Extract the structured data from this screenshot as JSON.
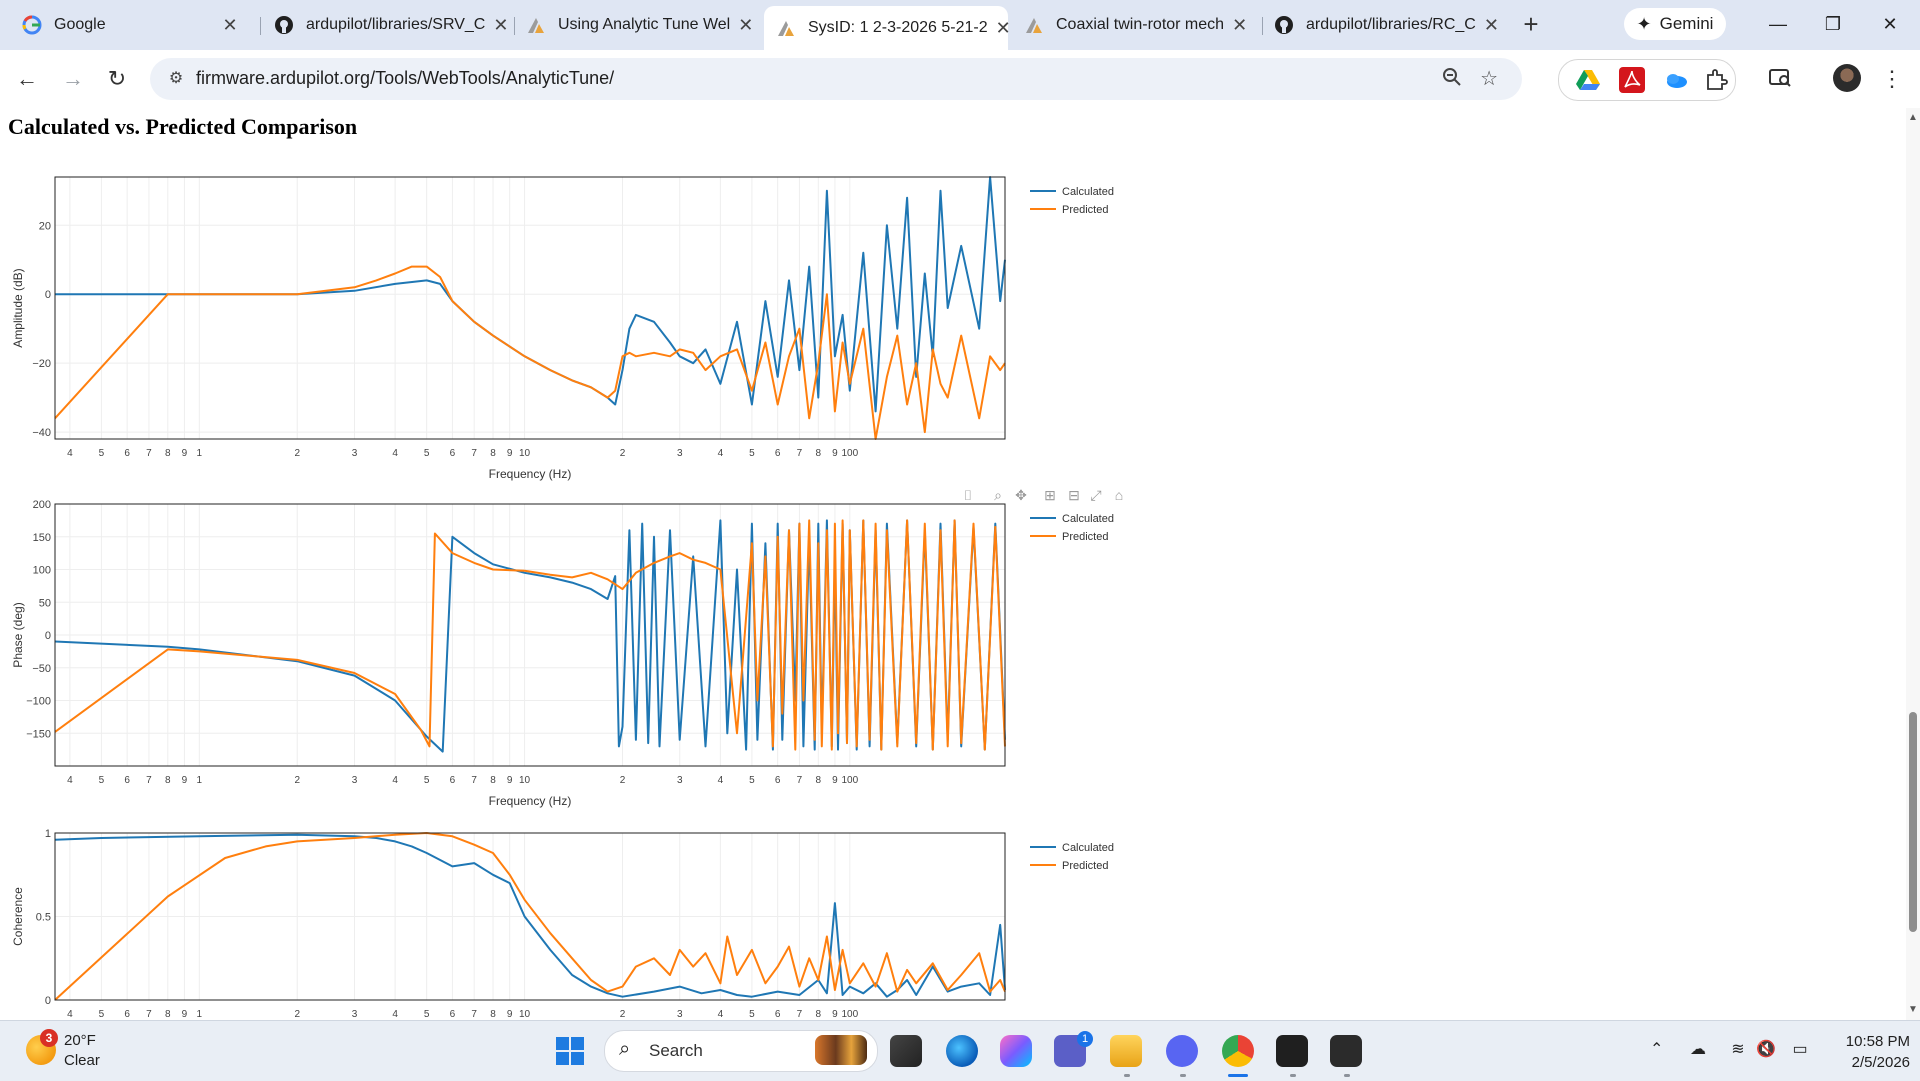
{
  "browser": {
    "tabs": [
      {
        "title": "Google",
        "icon": "google-icon"
      },
      {
        "title": "ardupilot/libraries/SRV_C",
        "icon": "github-icon"
      },
      {
        "title": "Using Analytic Tune Wel",
        "icon": "ardupilot-icon"
      },
      {
        "title": "SysID: 1 2-3-2026 5-21-2",
        "icon": "ardupilot-icon",
        "active": true
      },
      {
        "title": "Coaxial twin-rotor mech",
        "icon": "ardupilot-icon"
      },
      {
        "title": "ardupilot/libraries/RC_C",
        "icon": "github-icon"
      }
    ],
    "gemini_label": "Gemini",
    "url": "firmware.ardupilot.org/Tools/WebTools/AnalyticTune/"
  },
  "page": {
    "title": "Calculated vs. Predicted Comparison"
  },
  "chart_data": [
    {
      "type": "line",
      "title": "",
      "xlabel": "Frequency (Hz)",
      "ylabel": "Amplitude (dB)",
      "xscale": "log",
      "xlim": [
        0.36,
        300
      ],
      "ylim": [
        -42,
        34
      ],
      "x_ticks": [
        {
          "v": 0.4,
          "t": "4"
        },
        {
          "v": 0.5,
          "t": "5"
        },
        {
          "v": 0.6,
          "t": "6"
        },
        {
          "v": 0.7,
          "t": "7"
        },
        {
          "v": 0.8,
          "t": "8"
        },
        {
          "v": 0.9,
          "t": "9"
        },
        {
          "v": 1,
          "t": "1"
        },
        {
          "v": 2,
          "t": "2"
        },
        {
          "v": 3,
          "t": "3"
        },
        {
          "v": 4,
          "t": "4"
        },
        {
          "v": 5,
          "t": "5"
        },
        {
          "v": 6,
          "t": "6"
        },
        {
          "v": 7,
          "t": "7"
        },
        {
          "v": 8,
          "t": "8"
        },
        {
          "v": 9,
          "t": "9"
        },
        {
          "v": 10,
          "t": "10"
        },
        {
          "v": 20,
          "t": "2"
        },
        {
          "v": 30,
          "t": "3"
        },
        {
          "v": 40,
          "t": "4"
        },
        {
          "v": 50,
          "t": "5"
        },
        {
          "v": 60,
          "t": "6"
        },
        {
          "v": 70,
          "t": "7"
        },
        {
          "v": 80,
          "t": "8"
        },
        {
          "v": 90,
          "t": "9"
        },
        {
          "v": 100,
          "t": "100"
        }
      ],
      "y_ticks": [
        {
          "v": 20,
          "t": "20"
        },
        {
          "v": 0,
          "t": "0"
        },
        {
          "v": -20,
          "t": "−20"
        },
        {
          "v": -40,
          "t": "−40"
        }
      ],
      "legend": "top-right outside",
      "series": [
        {
          "name": "Calculated",
          "color": "#1f77b4",
          "x": [
            0.36,
            0.5,
            0.8,
            1,
            2,
            3,
            4,
            5,
            5.5,
            6,
            7,
            8,
            10,
            12,
            14,
            16,
            18,
            19,
            20,
            21,
            22,
            25,
            28,
            30,
            33,
            36,
            40,
            45,
            50,
            55,
            60,
            65,
            70,
            75,
            80,
            85,
            90,
            95,
            100,
            110,
            120,
            130,
            140,
            150,
            160,
            170,
            180,
            190,
            200,
            220,
            250,
            270,
            290,
            300
          ],
          "y": [
            0,
            0,
            0,
            0,
            0,
            1,
            3,
            4,
            3,
            -2,
            -8,
            -12,
            -18,
            -22,
            -25,
            -27,
            -30,
            -32,
            -22,
            -10,
            -6,
            -8,
            -14,
            -18,
            -20,
            -16,
            -26,
            -8,
            -32,
            -2,
            -24,
            4,
            -22,
            8,
            -30,
            30,
            -18,
            -6,
            -28,
            12,
            -34,
            20,
            -10,
            28,
            -24,
            6,
            -18,
            30,
            -4,
            14,
            -10,
            34,
            -2,
            10
          ]
        },
        {
          "name": "Predicted",
          "color": "#ff7f0e",
          "x": [
            0.36,
            0.8,
            1,
            2,
            3,
            3.5,
            4,
            4.5,
            5,
            5.5,
            6,
            7,
            8,
            10,
            12,
            14,
            16,
            18,
            19,
            20,
            21,
            22,
            25,
            28,
            30,
            33,
            36,
            40,
            45,
            50,
            55,
            60,
            65,
            70,
            75,
            80,
            85,
            90,
            95,
            100,
            110,
            120,
            130,
            140,
            150,
            160,
            170,
            180,
            190,
            200,
            220,
            250,
            270,
            290,
            300
          ],
          "y": [
            -36,
            0,
            0,
            0,
            2,
            4,
            6,
            8,
            8,
            5,
            -2,
            -8,
            -12,
            -18,
            -22,
            -25,
            -27,
            -30,
            -28,
            -18,
            -17,
            -18,
            -17,
            -18,
            -16,
            -17,
            -22,
            -18,
            -16,
            -28,
            -14,
            -32,
            -18,
            -10,
            -36,
            -20,
            0,
            -34,
            -14,
            -26,
            -10,
            -42,
            -24,
            -12,
            -32,
            -20,
            -40,
            -16,
            -26,
            -30,
            -12,
            -36,
            -18,
            -22,
            -20
          ]
        }
      ]
    },
    {
      "type": "line",
      "title": "",
      "xlabel": "Frequency (Hz)",
      "ylabel": "Phase (deg)",
      "xscale": "log",
      "xlim": [
        0.36,
        300
      ],
      "ylim": [
        -200,
        200
      ],
      "x_ticks": [
        {
          "v": 0.4,
          "t": "4"
        },
        {
          "v": 0.5,
          "t": "5"
        },
        {
          "v": 0.6,
          "t": "6"
        },
        {
          "v": 0.7,
          "t": "7"
        },
        {
          "v": 0.8,
          "t": "8"
        },
        {
          "v": 0.9,
          "t": "9"
        },
        {
          "v": 1,
          "t": "1"
        },
        {
          "v": 2,
          "t": "2"
        },
        {
          "v": 3,
          "t": "3"
        },
        {
          "v": 4,
          "t": "4"
        },
        {
          "v": 5,
          "t": "5"
        },
        {
          "v": 6,
          "t": "6"
        },
        {
          "v": 7,
          "t": "7"
        },
        {
          "v": 8,
          "t": "8"
        },
        {
          "v": 9,
          "t": "9"
        },
        {
          "v": 10,
          "t": "10"
        },
        {
          "v": 20,
          "t": "2"
        },
        {
          "v": 30,
          "t": "3"
        },
        {
          "v": 40,
          "t": "4"
        },
        {
          "v": 50,
          "t": "5"
        },
        {
          "v": 60,
          "t": "6"
        },
        {
          "v": 70,
          "t": "7"
        },
        {
          "v": 80,
          "t": "8"
        },
        {
          "v": 90,
          "t": "9"
        },
        {
          "v": 100,
          "t": "100"
        }
      ],
      "y_ticks": [
        {
          "v": 200,
          "t": "200"
        },
        {
          "v": 150,
          "t": "150"
        },
        {
          "v": 100,
          "t": "100"
        },
        {
          "v": 50,
          "t": "50"
        },
        {
          "v": 0,
          "t": "0"
        },
        {
          "v": -50,
          "t": "−50"
        },
        {
          "v": -100,
          "t": "−100"
        },
        {
          "v": -150,
          "t": "−150"
        }
      ],
      "legend": "top-right outside",
      "series": [
        {
          "name": "Calculated",
          "color": "#1f77b4",
          "x": [
            0.36,
            0.8,
            1,
            2,
            3,
            4,
            5,
            5.6,
            6,
            7,
            8,
            10,
            12,
            14,
            16,
            18,
            19,
            19.5,
            20,
            21,
            22,
            23,
            24,
            25,
            26,
            28,
            30,
            33,
            36,
            40,
            42,
            45,
            48,
            50,
            52,
            55,
            58,
            60,
            62,
            65,
            68,
            70,
            72,
            75,
            78,
            80,
            82,
            85,
            88,
            90,
            92,
            95,
            98,
            100,
            105,
            110,
            115,
            120,
            125,
            130,
            140,
            150,
            160,
            170,
            180,
            190,
            200,
            210,
            220,
            240,
            260,
            280,
            300
          ],
          "y": [
            -10,
            -18,
            -22,
            -40,
            -62,
            -100,
            -155,
            -178,
            150,
            125,
            108,
            95,
            88,
            80,
            70,
            55,
            90,
            -170,
            -140,
            160,
            -160,
            170,
            -165,
            150,
            -170,
            160,
            -160,
            120,
            -170,
            175,
            -150,
            100,
            -175,
            170,
            -160,
            140,
            -175,
            170,
            -160,
            160,
            -100,
            170,
            -170,
            150,
            -175,
            170,
            -150,
            175,
            -170,
            120,
            -175,
            170,
            -165,
            160,
            -175,
            175,
            -170,
            160,
            -175,
            170,
            -165,
            175,
            -170,
            160,
            -175,
            170,
            -160,
            175,
            -170,
            165,
            -175,
            170,
            -160
          ]
        },
        {
          "name": "Predicted",
          "color": "#ff7f0e",
          "x": [
            0.36,
            0.8,
            1,
            2,
            3,
            4,
            4.8,
            5.1,
            5.3,
            6,
            7,
            8,
            10,
            12,
            14,
            16,
            18,
            20,
            22,
            25,
            28,
            30,
            33,
            36,
            40,
            45,
            50,
            52,
            55,
            58,
            60,
            62,
            65,
            68,
            70,
            72,
            75,
            78,
            80,
            82,
            85,
            88,
            90,
            92,
            95,
            98,
            100,
            105,
            110,
            115,
            120,
            125,
            130,
            140,
            150,
            160,
            170,
            180,
            190,
            200,
            210,
            220,
            240,
            260,
            280,
            300
          ],
          "y": [
            -148,
            -22,
            -25,
            -38,
            -58,
            -90,
            -145,
            -170,
            155,
            125,
            110,
            100,
            98,
            92,
            88,
            95,
            85,
            70,
            95,
            110,
            120,
            125,
            115,
            110,
            100,
            -150,
            140,
            -100,
            120,
            -170,
            150,
            -120,
            160,
            -175,
            170,
            -100,
            175,
            -160,
            140,
            -170,
            160,
            -175,
            170,
            -150,
            175,
            -165,
            160,
            -170,
            175,
            -160,
            170,
            -175,
            160,
            -170,
            175,
            -165,
            170,
            -175,
            160,
            -170,
            175,
            -165,
            170,
            -175,
            165,
            -170
          ]
        }
      ]
    },
    {
      "type": "line",
      "title": "",
      "xlabel": "",
      "ylabel": "Coherence",
      "xscale": "log",
      "xlim": [
        0.36,
        300
      ],
      "ylim": [
        0,
        1
      ],
      "x_ticks": [
        {
          "v": 0.4,
          "t": "4"
        },
        {
          "v": 0.5,
          "t": "5"
        },
        {
          "v": 0.6,
          "t": "6"
        },
        {
          "v": 0.7,
          "t": "7"
        },
        {
          "v": 0.8,
          "t": "8"
        },
        {
          "v": 0.9,
          "t": "9"
        },
        {
          "v": 1,
          "t": "1"
        },
        {
          "v": 2,
          "t": "2"
        },
        {
          "v": 3,
          "t": "3"
        },
        {
          "v": 4,
          "t": "4"
        },
        {
          "v": 5,
          "t": "5"
        },
        {
          "v": 6,
          "t": "6"
        },
        {
          "v": 7,
          "t": "7"
        },
        {
          "v": 8,
          "t": "8"
        },
        {
          "v": 9,
          "t": "9"
        },
        {
          "v": 10,
          "t": "10"
        },
        {
          "v": 20,
          "t": "2"
        },
        {
          "v": 30,
          "t": "3"
        },
        {
          "v": 40,
          "t": "4"
        },
        {
          "v": 50,
          "t": "5"
        },
        {
          "v": 60,
          "t": "6"
        },
        {
          "v": 70,
          "t": "7"
        },
        {
          "v": 80,
          "t": "8"
        },
        {
          "v": 90,
          "t": "9"
        },
        {
          "v": 100,
          "t": "100"
        }
      ],
      "y_ticks": [
        {
          "v": 1,
          "t": "1"
        },
        {
          "v": 0.5,
          "t": "0.5"
        },
        {
          "v": 0,
          "t": "0"
        }
      ],
      "legend": "top-right outside",
      "series": [
        {
          "name": "Calculated",
          "color": "#1f77b4",
          "x": [
            0.36,
            0.5,
            1,
            2,
            3,
            3.5,
            4,
            4.5,
            5,
            6,
            7,
            8,
            9,
            10,
            12,
            14,
            16,
            18,
            20,
            25,
            30,
            35,
            40,
            45,
            50,
            60,
            70,
            80,
            85,
            90,
            95,
            100,
            110,
            120,
            130,
            140,
            150,
            160,
            180,
            200,
            220,
            250,
            270,
            290,
            300
          ],
          "y": [
            0.96,
            0.97,
            0.98,
            0.99,
            0.98,
            0.97,
            0.95,
            0.92,
            0.88,
            0.8,
            0.82,
            0.75,
            0.7,
            0.5,
            0.3,
            0.15,
            0.08,
            0.04,
            0.02,
            0.05,
            0.08,
            0.04,
            0.06,
            0.03,
            0.02,
            0.05,
            0.03,
            0.12,
            0.04,
            0.58,
            0.03,
            0.08,
            0.04,
            0.1,
            0.02,
            0.06,
            0.12,
            0.03,
            0.2,
            0.05,
            0.08,
            0.1,
            0.03,
            0.45,
            0.06
          ]
        },
        {
          "name": "Predicted",
          "color": "#ff7f0e",
          "x": [
            0.36,
            0.8,
            1.2,
            1.6,
            2,
            3,
            4,
            5,
            6,
            7,
            8,
            9,
            10,
            12,
            14,
            16,
            18,
            20,
            22,
            25,
            28,
            30,
            33,
            36,
            40,
            42,
            45,
            50,
            55,
            60,
            65,
            70,
            75,
            80,
            85,
            90,
            95,
            100,
            110,
            120,
            130,
            140,
            150,
            160,
            180,
            200,
            220,
            250,
            270,
            290,
            300
          ],
          "y": [
            0,
            0.62,
            0.85,
            0.92,
            0.95,
            0.97,
            0.99,
            1.0,
            0.98,
            0.93,
            0.88,
            0.75,
            0.6,
            0.4,
            0.25,
            0.12,
            0.05,
            0.08,
            0.2,
            0.25,
            0.15,
            0.3,
            0.2,
            0.28,
            0.1,
            0.38,
            0.15,
            0.3,
            0.1,
            0.2,
            0.32,
            0.08,
            0.25,
            0.12,
            0.38,
            0.06,
            0.3,
            0.1,
            0.22,
            0.08,
            0.28,
            0.05,
            0.18,
            0.1,
            0.22,
            0.06,
            0.15,
            0.28,
            0.05,
            0.12,
            0.05
          ]
        }
      ]
    }
  ],
  "plot_toolbar": {
    "icons": [
      "camera-icon",
      "zoom-icon",
      "pan-icon",
      "zoom-in-icon",
      "zoom-out-icon",
      "autoscale-icon",
      "reset-axes-icon"
    ]
  },
  "taskbar": {
    "weather_badge": "3",
    "temperature": "20°F",
    "condition": "Clear",
    "search_label": "Search",
    "notification_count": "1",
    "time": "10:58 PM",
    "date": "2/5/2026"
  }
}
